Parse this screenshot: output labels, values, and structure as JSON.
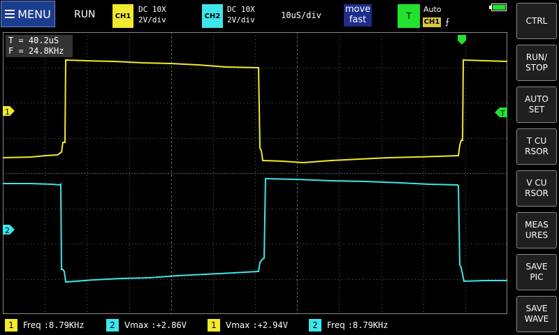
{
  "colors": {
    "ch1": "#f2ea2e",
    "ch2": "#3ee6ea",
    "trigger": "#22e22e",
    "grid": "#666666",
    "center_grid": "#2d9a2d"
  },
  "topbar": {
    "menu_label": "MENU",
    "status": "RUN",
    "ch1": {
      "badge": "CH1",
      "coupling": "DC 10X",
      "scale": "2V/div"
    },
    "ch2": {
      "badge": "CH2",
      "coupling": "DC 10X",
      "scale": "2V/div"
    },
    "timebase": "10uS/div",
    "move": {
      "line1": "move",
      "line2": "fast"
    },
    "trigger": {
      "badge": "T",
      "mode": "Auto",
      "source": "CH1",
      "edge_icon": "rising-edge-icon",
      "edge_glyph": "⨍"
    }
  },
  "screen": {
    "period": "T = 40.2uS",
    "frequency": "F = 24.8KHz",
    "ch1_marker": "1",
    "ch2_marker": "2",
    "trigger_marker": "T"
  },
  "sidebar": [
    {
      "id": "ctrl",
      "label": "CTRL"
    },
    {
      "id": "run-stop",
      "label": "RUN/\nSTOP"
    },
    {
      "id": "auto-set",
      "label": "AUTO\nSET"
    },
    {
      "id": "t-cursor",
      "label": "T CU\nRSOR"
    },
    {
      "id": "v-cursor",
      "label": "V CU\nRSOR"
    },
    {
      "id": "measures",
      "label": "MEAS\nURES"
    },
    {
      "id": "save-pic",
      "label": "SAVE\nPIC"
    },
    {
      "id": "save-wave",
      "label": "SAVE\nWAVE"
    }
  ],
  "measurements": [
    {
      "ch": "1",
      "label": "Freq",
      "value": ":8.79KHz"
    },
    {
      "ch": "2",
      "label": "Vmax",
      "value": ":+2.86V"
    },
    {
      "ch": "1",
      "label": "Vmax",
      "value": ":+2.94V"
    },
    {
      "ch": "2",
      "label": "Freq",
      "value": ":8.79KHz"
    }
  ]
}
